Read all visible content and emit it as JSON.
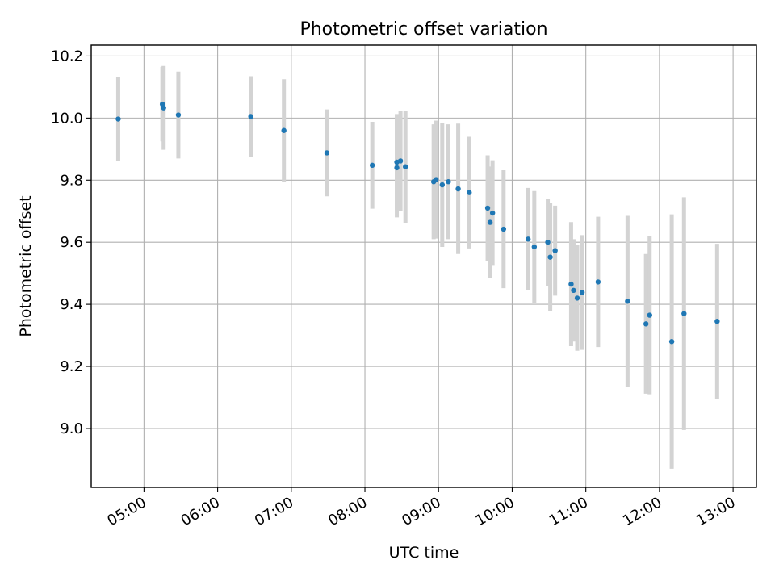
{
  "chart_data": {
    "type": "scatter",
    "title": "Photometric offset variation",
    "xlabel": "UTC time",
    "ylabel": "Photometric offset",
    "x_tick_labels": [
      "05:00",
      "06:00",
      "07:00",
      "08:00",
      "09:00",
      "10:00",
      "11:00",
      "12:00",
      "13:00"
    ],
    "y_tick_labels": [
      "9.0",
      "9.2",
      "9.4",
      "9.6",
      "9.8",
      "10.0",
      "10.2"
    ],
    "x_ticks": [
      "05:00",
      "06:00",
      "07:00",
      "08:00",
      "09:00",
      "10:00",
      "11:00",
      "12:00",
      "13:00"
    ],
    "y_ticks": [
      9.0,
      9.2,
      9.4,
      9.6,
      9.8,
      10.0,
      10.2
    ],
    "xlim": [
      "04:17",
      "13:19"
    ],
    "ylim": [
      8.81,
      10.235
    ],
    "grid": true,
    "point_color": "#1f77b4",
    "errorbar_color": "#d3d3d3",
    "series": [
      {
        "points": [
          {
            "x": "04:39",
            "y": 9.997,
            "yerr": 0.135
          },
          {
            "x": "05:15",
            "y": 10.045,
            "yerr": 0.12
          },
          {
            "x": "05:16",
            "y": 10.033,
            "yerr": 0.135
          },
          {
            "x": "05:28",
            "y": 10.01,
            "yerr": 0.14
          },
          {
            "x": "06:27",
            "y": 10.005,
            "yerr": 0.13
          },
          {
            "x": "06:54",
            "y": 9.96,
            "yerr": 0.165
          },
          {
            "x": "07:29",
            "y": 9.888,
            "yerr": 0.14
          },
          {
            "x": "08:06",
            "y": 9.848,
            "yerr": 0.14
          },
          {
            "x": "08:26",
            "y": 9.84,
            "yerr": 0.16
          },
          {
            "x": "08:26",
            "y": 9.858,
            "yerr": 0.155
          },
          {
            "x": "08:29",
            "y": 9.862,
            "yerr": 0.16
          },
          {
            "x": "08:33",
            "y": 9.843,
            "yerr": 0.18
          },
          {
            "x": "08:56",
            "y": 9.795,
            "yerr": 0.185
          },
          {
            "x": "08:58",
            "y": 9.802,
            "yerr": 0.19
          },
          {
            "x": "09:03",
            "y": 9.785,
            "yerr": 0.2
          },
          {
            "x": "09:08",
            "y": 9.795,
            "yerr": 0.185
          },
          {
            "x": "09:16",
            "y": 9.772,
            "yerr": 0.21
          },
          {
            "x": "09:25",
            "y": 9.76,
            "yerr": 0.18
          },
          {
            "x": "09:40",
            "y": 9.71,
            "yerr": 0.17
          },
          {
            "x": "09:42",
            "y": 9.664,
            "yerr": 0.18
          },
          {
            "x": "09:44",
            "y": 9.694,
            "yerr": 0.17
          },
          {
            "x": "09:53",
            "y": 9.642,
            "yerr": 0.19
          },
          {
            "x": "10:13",
            "y": 9.61,
            "yerr": 0.165
          },
          {
            "x": "10:18",
            "y": 9.585,
            "yerr": 0.18
          },
          {
            "x": "10:29",
            "y": 9.6,
            "yerr": 0.14
          },
          {
            "x": "10:31",
            "y": 9.552,
            "yerr": 0.175
          },
          {
            "x": "10:35",
            "y": 9.573,
            "yerr": 0.145
          },
          {
            "x": "10:48",
            "y": 9.465,
            "yerr": 0.2
          },
          {
            "x": "10:50",
            "y": 9.445,
            "yerr": 0.165
          },
          {
            "x": "10:53",
            "y": 9.42,
            "yerr": 0.17
          },
          {
            "x": "10:57",
            "y": 9.438,
            "yerr": 0.185
          },
          {
            "x": "11:10",
            "y": 9.472,
            "yerr": 0.21
          },
          {
            "x": "11:34",
            "y": 9.41,
            "yerr": 0.275
          },
          {
            "x": "11:49",
            "y": 9.337,
            "yerr": 0.225
          },
          {
            "x": "11:52",
            "y": 9.365,
            "yerr": 0.255
          },
          {
            "x": "12:10",
            "y": 9.28,
            "yerr": 0.41
          },
          {
            "x": "12:20",
            "y": 9.37,
            "yerr": 0.375
          },
          {
            "x": "12:47",
            "y": 9.345,
            "yerr": 0.25
          }
        ]
      }
    ]
  }
}
